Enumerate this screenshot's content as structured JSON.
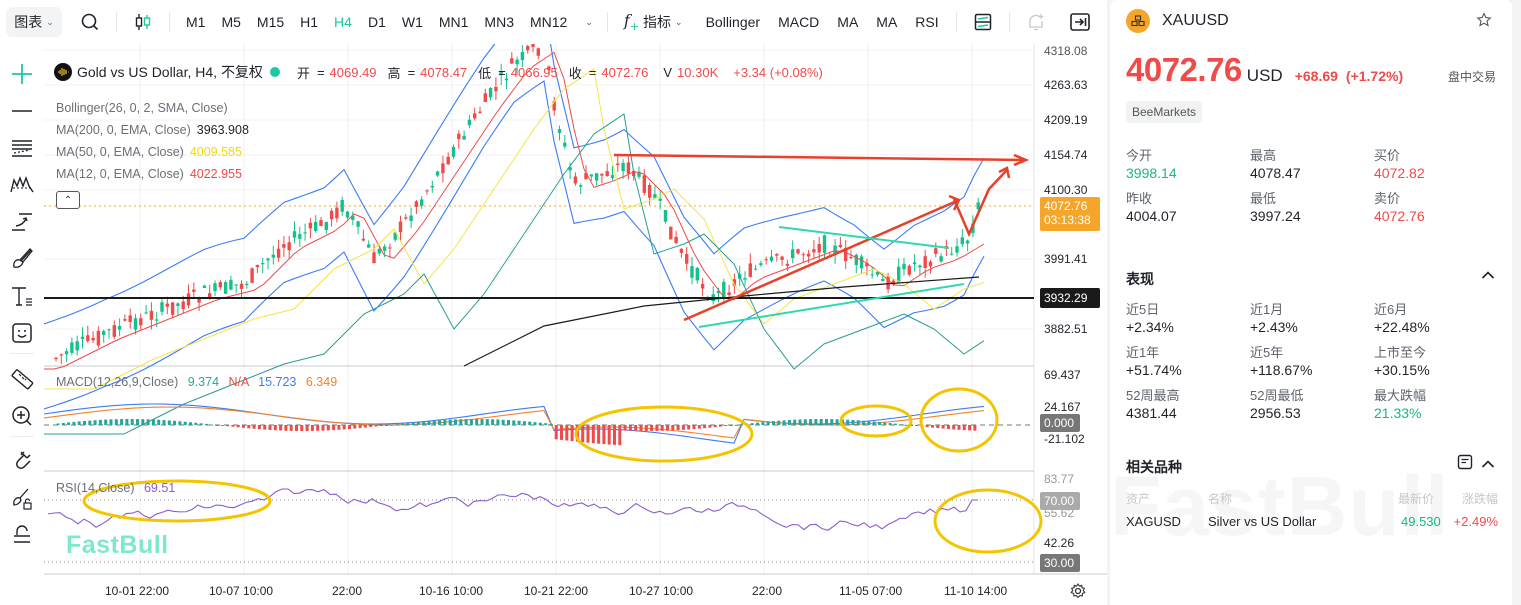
{
  "toolbar": {
    "chart_menu_label": "图表",
    "timeframes": [
      "M1",
      "M5",
      "M15",
      "H1",
      "H4",
      "D1",
      "W1",
      "MN1",
      "MN3",
      "MN12"
    ],
    "active_timeframe": "H4",
    "indicators_label": "指标",
    "indicator_shortcuts": [
      "Bollinger",
      "MACD",
      "MA",
      "MA",
      "RSI"
    ]
  },
  "left_tools": [
    "crosshair-icon",
    "horizontal-line-icon",
    "parallel-channel-icon",
    "pattern-icon",
    "projection-icon",
    "brush-icon",
    "text-icon",
    "emoji-icon",
    "ruler-icon",
    "zoom-in-icon",
    "magnet-icon",
    "lock-drawing-icon",
    "lock-icon"
  ],
  "chart": {
    "symbol_title": "Gold vs US Dollar, H4, 不复权",
    "ohlc": {
      "open_label": "开",
      "open": "4069.49",
      "high_label": "高",
      "high": "4078.47",
      "low_label": "低",
      "low": "4066.95",
      "close_label": "收",
      "close": "4072.76",
      "volume_label": "V",
      "volume": "10.30K",
      "change": "+3.34 (+0.08%)"
    },
    "indicators": [
      {
        "label": "Bollinger(26, 0, 2, SMA, Close)",
        "value": ""
      },
      {
        "label": "MA(200, 0, EMA, Close)",
        "value": "3963.908",
        "color": "#1f2329"
      },
      {
        "label": "MA(50, 0, EMA, Close)",
        "value": "4009.585",
        "color": "#f5d90a"
      },
      {
        "label": "MA(12, 0, EMA, Close)",
        "value": "4022.955",
        "color": "#f04a4a"
      }
    ],
    "price_axis": [
      "4318.08",
      "4263.63",
      "4209.19",
      "4154.74",
      "4100.30",
      "3991.41",
      "3882.51"
    ],
    "current_price_tag": {
      "price": "4072.76",
      "countdown": "03:13:38"
    },
    "hline_tag": "3932.29",
    "macd": {
      "label": "MACD(12,26,9,Close)",
      "values": [
        {
          "v": "9.374",
          "color": "#26a69a"
        },
        {
          "v": "N/A",
          "color": "#f04a4a"
        },
        {
          "v": "15.723",
          "color": "#3b7cf5"
        },
        {
          "v": "6.349",
          "color": "#f5812a"
        }
      ],
      "axis": [
        "69.437",
        "24.167",
        "-21.102"
      ],
      "zero_tag": "0.000"
    },
    "rsi": {
      "label": "RSI(14,Close)",
      "value": "69.51",
      "axis": [
        "83.77",
        "55.62",
        "42.26"
      ],
      "upper_tag": "70.00",
      "lower_tag": "30.00"
    },
    "time_axis": [
      "10-01 22:00",
      "10-07 10:00",
      "22:00",
      "10-16 10:00",
      "10-21 22:00",
      "10-27 10:00",
      "22:00",
      "11-05 07:00",
      "11-10 14:00"
    ],
    "watermark": "FastBull",
    "colors": {
      "up": "#13c28b",
      "down": "#f04a4a",
      "bb": "#3b7cf5",
      "ma50": "#f5e44a",
      "ma200": "#1a1a1a",
      "annotation": "#e8402a",
      "highlight": "#f5c400"
    }
  },
  "panel": {
    "symbol": "XAUUSD",
    "price": "4072.76",
    "currency": "USD",
    "change": "+68.69",
    "change_pct": "(+1.72%)",
    "session_status": "盘中交易",
    "broker": "BeeMarkets",
    "quote": [
      {
        "label": "今开",
        "value": "3998.14",
        "tone": "green"
      },
      {
        "label": "最高",
        "value": "4078.47",
        "tone": ""
      },
      {
        "label": "买价",
        "value": "4072.82",
        "tone": "red"
      },
      {
        "label": "昨收",
        "value": "4004.07",
        "tone": ""
      },
      {
        "label": "最低",
        "value": "3997.24",
        "tone": ""
      },
      {
        "label": "卖价",
        "value": "4072.76",
        "tone": "red"
      }
    ],
    "performance_title": "表现",
    "performance": [
      {
        "label": "近5日",
        "value": "+2.34%",
        "tone": ""
      },
      {
        "label": "近1月",
        "value": "+2.43%",
        "tone": ""
      },
      {
        "label": "近6月",
        "value": "+22.48%",
        "tone": ""
      },
      {
        "label": "近1年",
        "value": "+51.74%",
        "tone": ""
      },
      {
        "label": "近5年",
        "value": "+118.67%",
        "tone": ""
      },
      {
        "label": "上市至今",
        "value": "+30.15%",
        "tone": ""
      },
      {
        "label": "52周最高",
        "value": "4381.44",
        "tone": ""
      },
      {
        "label": "52周最低",
        "value": "2956.53",
        "tone": ""
      },
      {
        "label": "最大跌幅",
        "value": "21.33%",
        "tone": "green"
      }
    ],
    "related_title": "相关品种",
    "related_headers": [
      "资产",
      "名称",
      "最新价",
      "涨跌幅"
    ],
    "related_rows": [
      {
        "asset": "XAGUSD",
        "name": "Silver vs US Dollar",
        "last": "49.530",
        "change": "+2.49%"
      }
    ],
    "watermark": "FastBull"
  }
}
